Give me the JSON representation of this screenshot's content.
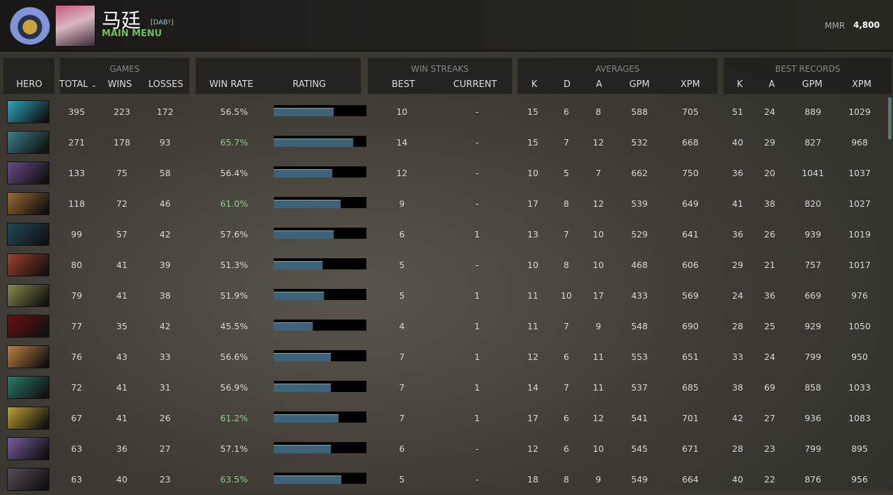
{
  "header": {
    "player_name": "马廷",
    "clan_tag": "[DAB!]",
    "menu_link": "MAIN MENU",
    "mmr_label": "MMR",
    "mmr_value": "4,800"
  },
  "columns": {
    "hero": "HERO",
    "games_group": "GAMES",
    "total": "TOTAL",
    "sort_icon": "⌄",
    "wins": "WINS",
    "losses": "LOSSES",
    "win_rate": "WIN RATE",
    "rating": "RATING",
    "streaks_group": "WIN STREAKS",
    "best": "BEST",
    "current": "CURRENT",
    "averages_group": "AVERAGES",
    "k": "K",
    "d": "D",
    "a": "A",
    "gpm": "GPM",
    "xpm": "XPM",
    "best_group": "BEST RECORDS",
    "bk": "K",
    "ba": "A",
    "bgpm": "GPM",
    "bxpm": "XPM"
  },
  "colors": {
    "win_rate_high": "#8fca8f",
    "win_rate_normal": "#d8d8d8",
    "rating_fill": "#3e6277"
  },
  "rows": [
    {
      "hero_color": "#2aa7c0",
      "total": "395",
      "wins": "223",
      "losses": "172",
      "win_rate": "56.5%",
      "rating": 0.65,
      "best": "10",
      "current": "-",
      "k": "15",
      "d": "6",
      "a": "8",
      "gpm": "588",
      "xpm": "705",
      "bk": "51",
      "ba": "24",
      "bgpm": "889",
      "bxpm": "1029"
    },
    {
      "hero_color": "#3c7f8a",
      "total": "271",
      "wins": "178",
      "losses": "93",
      "win_rate": "65.7%",
      "rating": 0.86,
      "best": "14",
      "current": "-",
      "k": "15",
      "d": "7",
      "a": "12",
      "gpm": "532",
      "xpm": "668",
      "bk": "40",
      "ba": "29",
      "bgpm": "827",
      "bxpm": "968"
    },
    {
      "hero_color": "#6a4a8a",
      "total": "133",
      "wins": "75",
      "losses": "58",
      "win_rate": "56.4%",
      "rating": 0.63,
      "best": "12",
      "current": "-",
      "k": "10",
      "d": "5",
      "a": "7",
      "gpm": "662",
      "xpm": "750",
      "bk": "36",
      "ba": "20",
      "bgpm": "1041",
      "bxpm": "1037"
    },
    {
      "hero_color": "#9a6a30",
      "total": "118",
      "wins": "72",
      "losses": "46",
      "win_rate": "61.0%",
      "rating": 0.72,
      "best": "9",
      "current": "-",
      "k": "17",
      "d": "8",
      "a": "12",
      "gpm": "539",
      "xpm": "649",
      "bk": "41",
      "ba": "38",
      "bgpm": "820",
      "bxpm": "1027"
    },
    {
      "hero_color": "#1f4a5a",
      "total": "99",
      "wins": "57",
      "losses": "42",
      "win_rate": "57.6%",
      "rating": 0.65,
      "best": "6",
      "current": "1",
      "k": "13",
      "d": "7",
      "a": "10",
      "gpm": "529",
      "xpm": "641",
      "bk": "36",
      "ba": "26",
      "bgpm": "939",
      "bxpm": "1019"
    },
    {
      "hero_color": "#a3402a",
      "total": "80",
      "wins": "41",
      "losses": "39",
      "win_rate": "51.3%",
      "rating": 0.53,
      "best": "5",
      "current": "-",
      "k": "10",
      "d": "8",
      "a": "10",
      "gpm": "468",
      "xpm": "606",
      "bk": "29",
      "ba": "21",
      "bgpm": "757",
      "bxpm": "1017"
    },
    {
      "hero_color": "#8a8a4a",
      "total": "79",
      "wins": "41",
      "losses": "38",
      "win_rate": "51.9%",
      "rating": 0.54,
      "best": "5",
      "current": "1",
      "k": "11",
      "d": "10",
      "a": "17",
      "gpm": "433",
      "xpm": "569",
      "bk": "24",
      "ba": "36",
      "bgpm": "669",
      "bxpm": "976"
    },
    {
      "hero_color": "#6a1010",
      "total": "77",
      "wins": "35",
      "losses": "42",
      "win_rate": "45.5%",
      "rating": 0.42,
      "best": "4",
      "current": "1",
      "k": "11",
      "d": "7",
      "a": "9",
      "gpm": "548",
      "xpm": "690",
      "bk": "28",
      "ba": "25",
      "bgpm": "929",
      "bxpm": "1050"
    },
    {
      "hero_color": "#c08040",
      "total": "76",
      "wins": "43",
      "losses": "33",
      "win_rate": "56.6%",
      "rating": 0.62,
      "best": "7",
      "current": "1",
      "k": "12",
      "d": "6",
      "a": "11",
      "gpm": "553",
      "xpm": "651",
      "bk": "33",
      "ba": "24",
      "bgpm": "799",
      "bxpm": "950"
    },
    {
      "hero_color": "#2a7a6a",
      "total": "72",
      "wins": "41",
      "losses": "31",
      "win_rate": "56.9%",
      "rating": 0.62,
      "best": "7",
      "current": "1",
      "k": "14",
      "d": "7",
      "a": "11",
      "gpm": "537",
      "xpm": "685",
      "bk": "38",
      "ba": "69",
      "bgpm": "858",
      "bxpm": "1033"
    },
    {
      "hero_color": "#c0a030",
      "total": "67",
      "wins": "41",
      "losses": "26",
      "win_rate": "61.2%",
      "rating": 0.7,
      "best": "7",
      "current": "1",
      "k": "17",
      "d": "6",
      "a": "12",
      "gpm": "541",
      "xpm": "701",
      "bk": "42",
      "ba": "27",
      "bgpm": "936",
      "bxpm": "1083"
    },
    {
      "hero_color": "#7a5aa0",
      "total": "63",
      "wins": "36",
      "losses": "27",
      "win_rate": "57.1%",
      "rating": 0.62,
      "best": "6",
      "current": "-",
      "k": "12",
      "d": "6",
      "a": "10",
      "gpm": "545",
      "xpm": "671",
      "bk": "28",
      "ba": "23",
      "bgpm": "799",
      "bxpm": "895"
    },
    {
      "hero_color": "#5a4a5a",
      "total": "63",
      "wins": "40",
      "losses": "23",
      "win_rate": "63.5%",
      "rating": 0.73,
      "best": "5",
      "current": "-",
      "k": "18",
      "d": "8",
      "a": "9",
      "gpm": "549",
      "xpm": "664",
      "bk": "40",
      "ba": "22",
      "bgpm": "876",
      "bxpm": "956"
    }
  ]
}
